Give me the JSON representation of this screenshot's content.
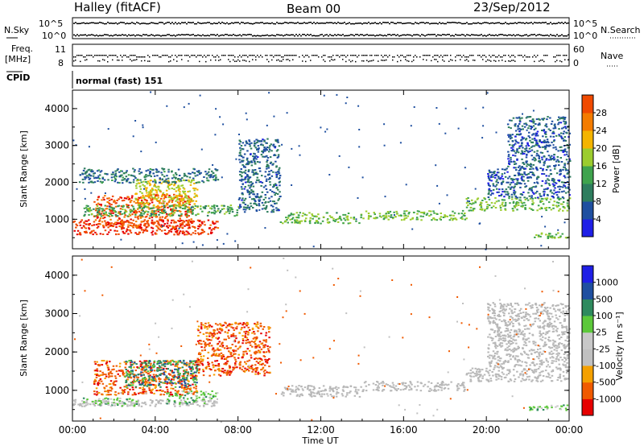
{
  "header": {
    "station": "Halley (fitACF)",
    "beam": "Beam 00",
    "date": "23/Sep/2012"
  },
  "strip_labels": {
    "nsky": "N.Sky",
    "nsky_top": "10^5",
    "nsky_bottom": "10^0",
    "nsearch": "N.Search",
    "freq": "Freq.",
    "freq_unit": "[MHz]",
    "freq_top": "11",
    "freq_bottom": "8",
    "nave": "Nave",
    "nave_top": "60",
    "nave_bottom": "0",
    "cpid": "CPID",
    "cpid_value": "normal (fast) 151"
  },
  "colors": {
    "power": [
      "#1f1fe6",
      "#1f4fa0",
      "#2e7d5e",
      "#3fa34d",
      "#9ccc2e",
      "#f4b400",
      "#f47c00",
      "#f04a00",
      "#e60000"
    ],
    "velocity": [
      "#e60000",
      "#f05a00",
      "#f4a000",
      "#c0c0c0",
      "#c8c8c8",
      "#5cc83a",
      "#2e8a5e",
      "#1f4fa0",
      "#1f1fe6"
    ],
    "ground_scatter": "#b8b8b8"
  },
  "chart_data": [
    {
      "type": "heatmap",
      "panel": "power",
      "ylabel": "Slant Range [km]",
      "colorbar_label": "Power [dB]",
      "colorbar_ticks": [
        "4",
        "8",
        "12",
        "16",
        "20",
        "24",
        "28"
      ],
      "ylim": [
        200,
        4500
      ],
      "y_ticks": [
        "1000",
        "2000",
        "3000",
        "4000"
      ],
      "xlim_hours": [
        0,
        24
      ],
      "regions": [
        {
          "x0": 0.0,
          "x1": 7.0,
          "y0": 600,
          "y1": 1000,
          "dB": 26
        },
        {
          "x0": 1.0,
          "x1": 5.8,
          "y0": 800,
          "y1": 1700,
          "dB": 24
        },
        {
          "x0": 3.0,
          "x1": 6.0,
          "y0": 1300,
          "y1": 2100,
          "dB": 16
        },
        {
          "x0": 0.5,
          "x1": 8.0,
          "y0": 1100,
          "y1": 1400,
          "dB": 10
        },
        {
          "x0": 0.3,
          "x1": 7.0,
          "y0": 2000,
          "y1": 2400,
          "dB": 6
        },
        {
          "x0": 8.0,
          "x1": 10.0,
          "y0": 1200,
          "y1": 3200,
          "dB": 5
        },
        {
          "x0": 10.0,
          "x1": 14.0,
          "y0": 900,
          "y1": 1200,
          "dB": 12
        },
        {
          "x0": 14.0,
          "x1": 19.0,
          "y0": 1000,
          "y1": 1250,
          "dB": 12
        },
        {
          "x0": 19.0,
          "x1": 24.0,
          "y0": 1250,
          "y1": 1600,
          "dB": 12
        },
        {
          "x0": 20.0,
          "x1": 24.0,
          "y0": 1600,
          "y1": 2400,
          "dB": 4
        },
        {
          "x0": 21.0,
          "x1": 24.0,
          "y0": 2400,
          "y1": 3800,
          "dB": 4
        },
        {
          "x0": 22.0,
          "x1": 24.0,
          "y0": 500,
          "y1": 650,
          "dB": 12
        }
      ]
    },
    {
      "type": "heatmap",
      "panel": "velocity",
      "ylabel": "Slant Range [km]",
      "colorbar_label": "Velocity [m s⁻¹]",
      "colorbar_ticks": [
        "1000",
        "500",
        "100",
        "25",
        "-25",
        "-100",
        "-500",
        "-1000"
      ],
      "ylim": [
        200,
        4500
      ],
      "y_ticks": [
        "1000",
        "2000",
        "3000",
        "4000"
      ],
      "xlim_hours": [
        0,
        24
      ],
      "xlabel": "Time UT",
      "x_ticks": [
        "00:00",
        "04:00",
        "08:00",
        "12:00",
        "16:00",
        "20:00",
        "00:00"
      ],
      "regions": [
        {
          "x0": 0.0,
          "x1": 7.0,
          "y0": 600,
          "y1": 780,
          "v": 0,
          "ground": true
        },
        {
          "x0": 0.3,
          "x1": 3.2,
          "y0": 600,
          "y1": 820,
          "v": 100
        },
        {
          "x0": 4.5,
          "x1": 7.0,
          "y0": 650,
          "y1": 1000,
          "v": 100
        },
        {
          "x0": 1.0,
          "x1": 6.0,
          "y0": 900,
          "y1": 1800,
          "v": -300
        },
        {
          "x0": 2.5,
          "x1": 6.0,
          "y0": 1100,
          "y1": 1800,
          "v": 300
        },
        {
          "x0": 6.0,
          "x1": 9.5,
          "y0": 1400,
          "y1": 2800,
          "v": -300
        },
        {
          "x0": 10.0,
          "x1": 14.0,
          "y0": 850,
          "y1": 1150,
          "v": 0,
          "ground": true
        },
        {
          "x0": 14.0,
          "x1": 19.0,
          "y0": 1000,
          "y1": 1250,
          "v": 0,
          "ground": true
        },
        {
          "x0": 19.0,
          "x1": 24.0,
          "y0": 1250,
          "y1": 1600,
          "v": 0,
          "ground": true
        },
        {
          "x0": 20.0,
          "x1": 24.0,
          "y0": 1600,
          "y1": 3300,
          "v": 0,
          "ground": true
        },
        {
          "x0": 22.0,
          "x1": 24.0,
          "y0": 500,
          "y1": 650,
          "v": 100
        }
      ]
    }
  ]
}
